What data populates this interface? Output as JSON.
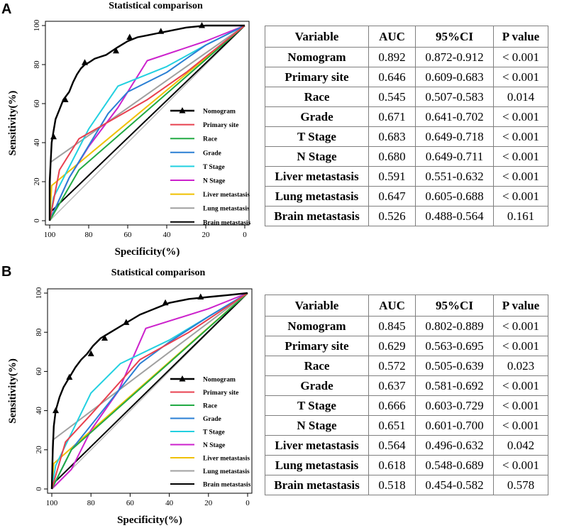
{
  "colors": {
    "nomogram": "#000000",
    "primary_site": "#e8404f",
    "race": "#22aa44",
    "grade": "#2a7fd4",
    "t_stage": "#22d0e0",
    "n_stage": "#cc22cc",
    "liver": "#f0c000",
    "lung": "#a0a0a0",
    "brain": "#000000",
    "diagonal": "#bbbbbb"
  },
  "chart_data": [
    {
      "type": "line",
      "panel": "A",
      "title": "Statistical comparison",
      "xlabel": "Specificity(%)",
      "ylabel": "Sensitivity(%)",
      "xlim": [
        100,
        0
      ],
      "ylim": [
        0,
        100
      ],
      "xticks": [
        100,
        80,
        60,
        40,
        20,
        0
      ],
      "yticks": [
        0,
        20,
        40,
        60,
        80,
        100
      ],
      "legend_position": "bottom-right",
      "series": [
        {
          "name": "Nomogram",
          "key": "nomogram",
          "marker": "triangle",
          "x": [
            100,
            100,
            99.5,
            99,
            98,
            97,
            95,
            93,
            90,
            88,
            86,
            84,
            82,
            80,
            77,
            74,
            71,
            68,
            65,
            60,
            55,
            50,
            45,
            40,
            30,
            20,
            10,
            0
          ],
          "y": [
            0,
            20,
            30,
            40,
            46,
            52,
            57,
            62,
            66,
            71,
            75,
            78,
            80,
            81,
            83,
            84,
            85,
            87,
            89,
            92,
            94,
            95,
            96,
            97,
            99,
            100,
            100,
            100
          ],
          "markers_x": [
            98,
            92,
            82,
            66,
            59,
            43,
            22
          ],
          "markers_y": [
            43,
            62,
            81,
            87,
            94,
            97,
            100
          ]
        },
        {
          "name": "Primary site",
          "key": "primary_site",
          "x": [
            100,
            95,
            85,
            50,
            30,
            0
          ],
          "y": [
            0,
            26,
            42,
            62,
            76,
            100
          ]
        },
        {
          "name": "Race",
          "key": "race",
          "x": [
            100,
            85,
            0
          ],
          "y": [
            0,
            26,
            100
          ]
        },
        {
          "name": "Grade",
          "key": "grade",
          "x": [
            100,
            90,
            70,
            60,
            40,
            20,
            0
          ],
          "y": [
            0,
            22,
            55,
            66,
            76,
            90,
            100
          ]
        },
        {
          "name": "T Stage",
          "key": "t_stage",
          "x": [
            100,
            98,
            80,
            65,
            40,
            20,
            0
          ],
          "y": [
            0,
            12,
            47,
            69,
            79,
            90,
            100
          ]
        },
        {
          "name": "N Stage",
          "key": "n_stage",
          "x": [
            100,
            90,
            80,
            65,
            50,
            20,
            0
          ],
          "y": [
            0,
            22,
            38,
            58,
            82,
            92,
            100
          ]
        },
        {
          "name": "Liver metastasis",
          "key": "liver",
          "x": [
            100,
            99,
            0
          ],
          "y": [
            0,
            18,
            100
          ]
        },
        {
          "name": "Lung metastasis",
          "key": "lung",
          "x": [
            100,
            99.5,
            0
          ],
          "y": [
            0,
            30,
            100
          ]
        },
        {
          "name": "Brain metastasis",
          "key": "brain",
          "x": [
            100,
            99,
            0
          ],
          "y": [
            0,
            5,
            100
          ]
        }
      ]
    },
    {
      "type": "line",
      "panel": "B",
      "title": "Statistical comparison",
      "xlabel": "Specificity(%)",
      "ylabel": "Sensitivity(%)",
      "xlim": [
        100,
        0
      ],
      "ylim": [
        0,
        100
      ],
      "xticks": [
        100,
        80,
        60,
        40,
        20,
        0
      ],
      "yticks": [
        0,
        20,
        40,
        60,
        80,
        100
      ],
      "legend_position": "bottom-right",
      "series": [
        {
          "name": "Nomogram",
          "key": "nomogram",
          "marker": "triangle",
          "x": [
            100,
            99.5,
            99,
            98,
            96,
            94,
            91,
            88,
            85,
            82,
            79,
            75,
            70,
            65,
            60,
            55,
            50,
            45,
            40,
            30,
            20,
            10,
            0
          ],
          "y": [
            0,
            20,
            32,
            40,
            47,
            52,
            57,
            62,
            66,
            69,
            73,
            77,
            80,
            83,
            86,
            89,
            91,
            93,
            95,
            97,
            98,
            99,
            100
          ],
          "markers_x": [
            98,
            91,
            80,
            73,
            62,
            42,
            24
          ],
          "markers_y": [
            40,
            57,
            69,
            77,
            85,
            95,
            98
          ]
        },
        {
          "name": "Primary site",
          "key": "primary_site",
          "x": [
            100,
            93,
            80,
            55,
            30,
            0
          ],
          "y": [
            0,
            24,
            38,
            66,
            80,
            100
          ]
        },
        {
          "name": "Race",
          "key": "race",
          "x": [
            100,
            90,
            0
          ],
          "y": [
            0,
            20,
            100
          ]
        },
        {
          "name": "Grade",
          "key": "grade",
          "x": [
            100,
            90,
            70,
            55,
            40,
            20,
            0
          ],
          "y": [
            0,
            20,
            45,
            64,
            75,
            88,
            100
          ]
        },
        {
          "name": "T Stage",
          "key": "t_stage",
          "x": [
            100,
            98,
            80,
            65,
            40,
            20,
            0
          ],
          "y": [
            0,
            12,
            49,
            64,
            76,
            88,
            100
          ]
        },
        {
          "name": "N Stage",
          "key": "n_stage",
          "x": [
            100,
            90,
            80,
            66,
            52,
            20,
            0
          ],
          "y": [
            0,
            10,
            30,
            50,
            82,
            92,
            100
          ]
        },
        {
          "name": "Liver metastasis",
          "key": "liver",
          "x": [
            100,
            99,
            0
          ],
          "y": [
            0,
            13,
            100
          ]
        },
        {
          "name": "Lung metastasis",
          "key": "lung",
          "x": [
            100,
            99.5,
            0
          ],
          "y": [
            0,
            25,
            100
          ]
        },
        {
          "name": "Brain metastasis",
          "key": "brain",
          "x": [
            100,
            99,
            0
          ],
          "y": [
            0,
            3,
            100
          ]
        }
      ]
    }
  ],
  "panels": [
    {
      "label": "A",
      "table": {
        "headers": [
          "Variable",
          "AUC",
          "95%CI",
          "P value"
        ],
        "rows": [
          [
            "Nomogram",
            "0.892",
            "0.872-0.912",
            "< 0.001"
          ],
          [
            "Primary site",
            "0.646",
            "0.609-0.683",
            "< 0.001"
          ],
          [
            "Race",
            "0.545",
            "0.507-0.583",
            "0.014"
          ],
          [
            "Grade",
            "0.671",
            "0.641-0.702",
            "< 0.001"
          ],
          [
            "T Stage",
            "0.683",
            "0.649-0.718",
            "< 0.001"
          ],
          [
            "N Stage",
            "0.680",
            "0.649-0.711",
            "< 0.001"
          ],
          [
            "Liver metastasis",
            "0.591",
            "0.551-0.632",
            "< 0.001"
          ],
          [
            "Lung metastasis",
            "0.647",
            "0.605-0.688",
            "< 0.001"
          ],
          [
            "Brain metastasis",
            "0.526",
            "0.488-0.564",
            "0.161"
          ]
        ]
      }
    },
    {
      "label": "B",
      "table": {
        "headers": [
          "Variable",
          "AUC",
          "95%CI",
          "P value"
        ],
        "rows": [
          [
            "Nomogram",
            "0.845",
            "0.802-0.889",
            "< 0.001"
          ],
          [
            "Primary site",
            "0.629",
            "0.563-0.695",
            "< 0.001"
          ],
          [
            "Race",
            "0.572",
            "0.505-0.639",
            "0.023"
          ],
          [
            "Grade",
            "0.637",
            "0.581-0.692",
            "< 0.001"
          ],
          [
            "T Stage",
            "0.666",
            "0.603-0.729",
            "< 0.001"
          ],
          [
            "N Stage",
            "0.651",
            "0.601-0.700",
            "< 0.001"
          ],
          [
            "Liver metastasis",
            "0.564",
            "0.496-0.632",
            "0.042"
          ],
          [
            "Lung metastasis",
            "0.618",
            "0.548-0.689",
            "< 0.001"
          ],
          [
            "Brain metastasis",
            "0.518",
            "0.454-0.582",
            "0.578"
          ]
        ]
      }
    }
  ]
}
